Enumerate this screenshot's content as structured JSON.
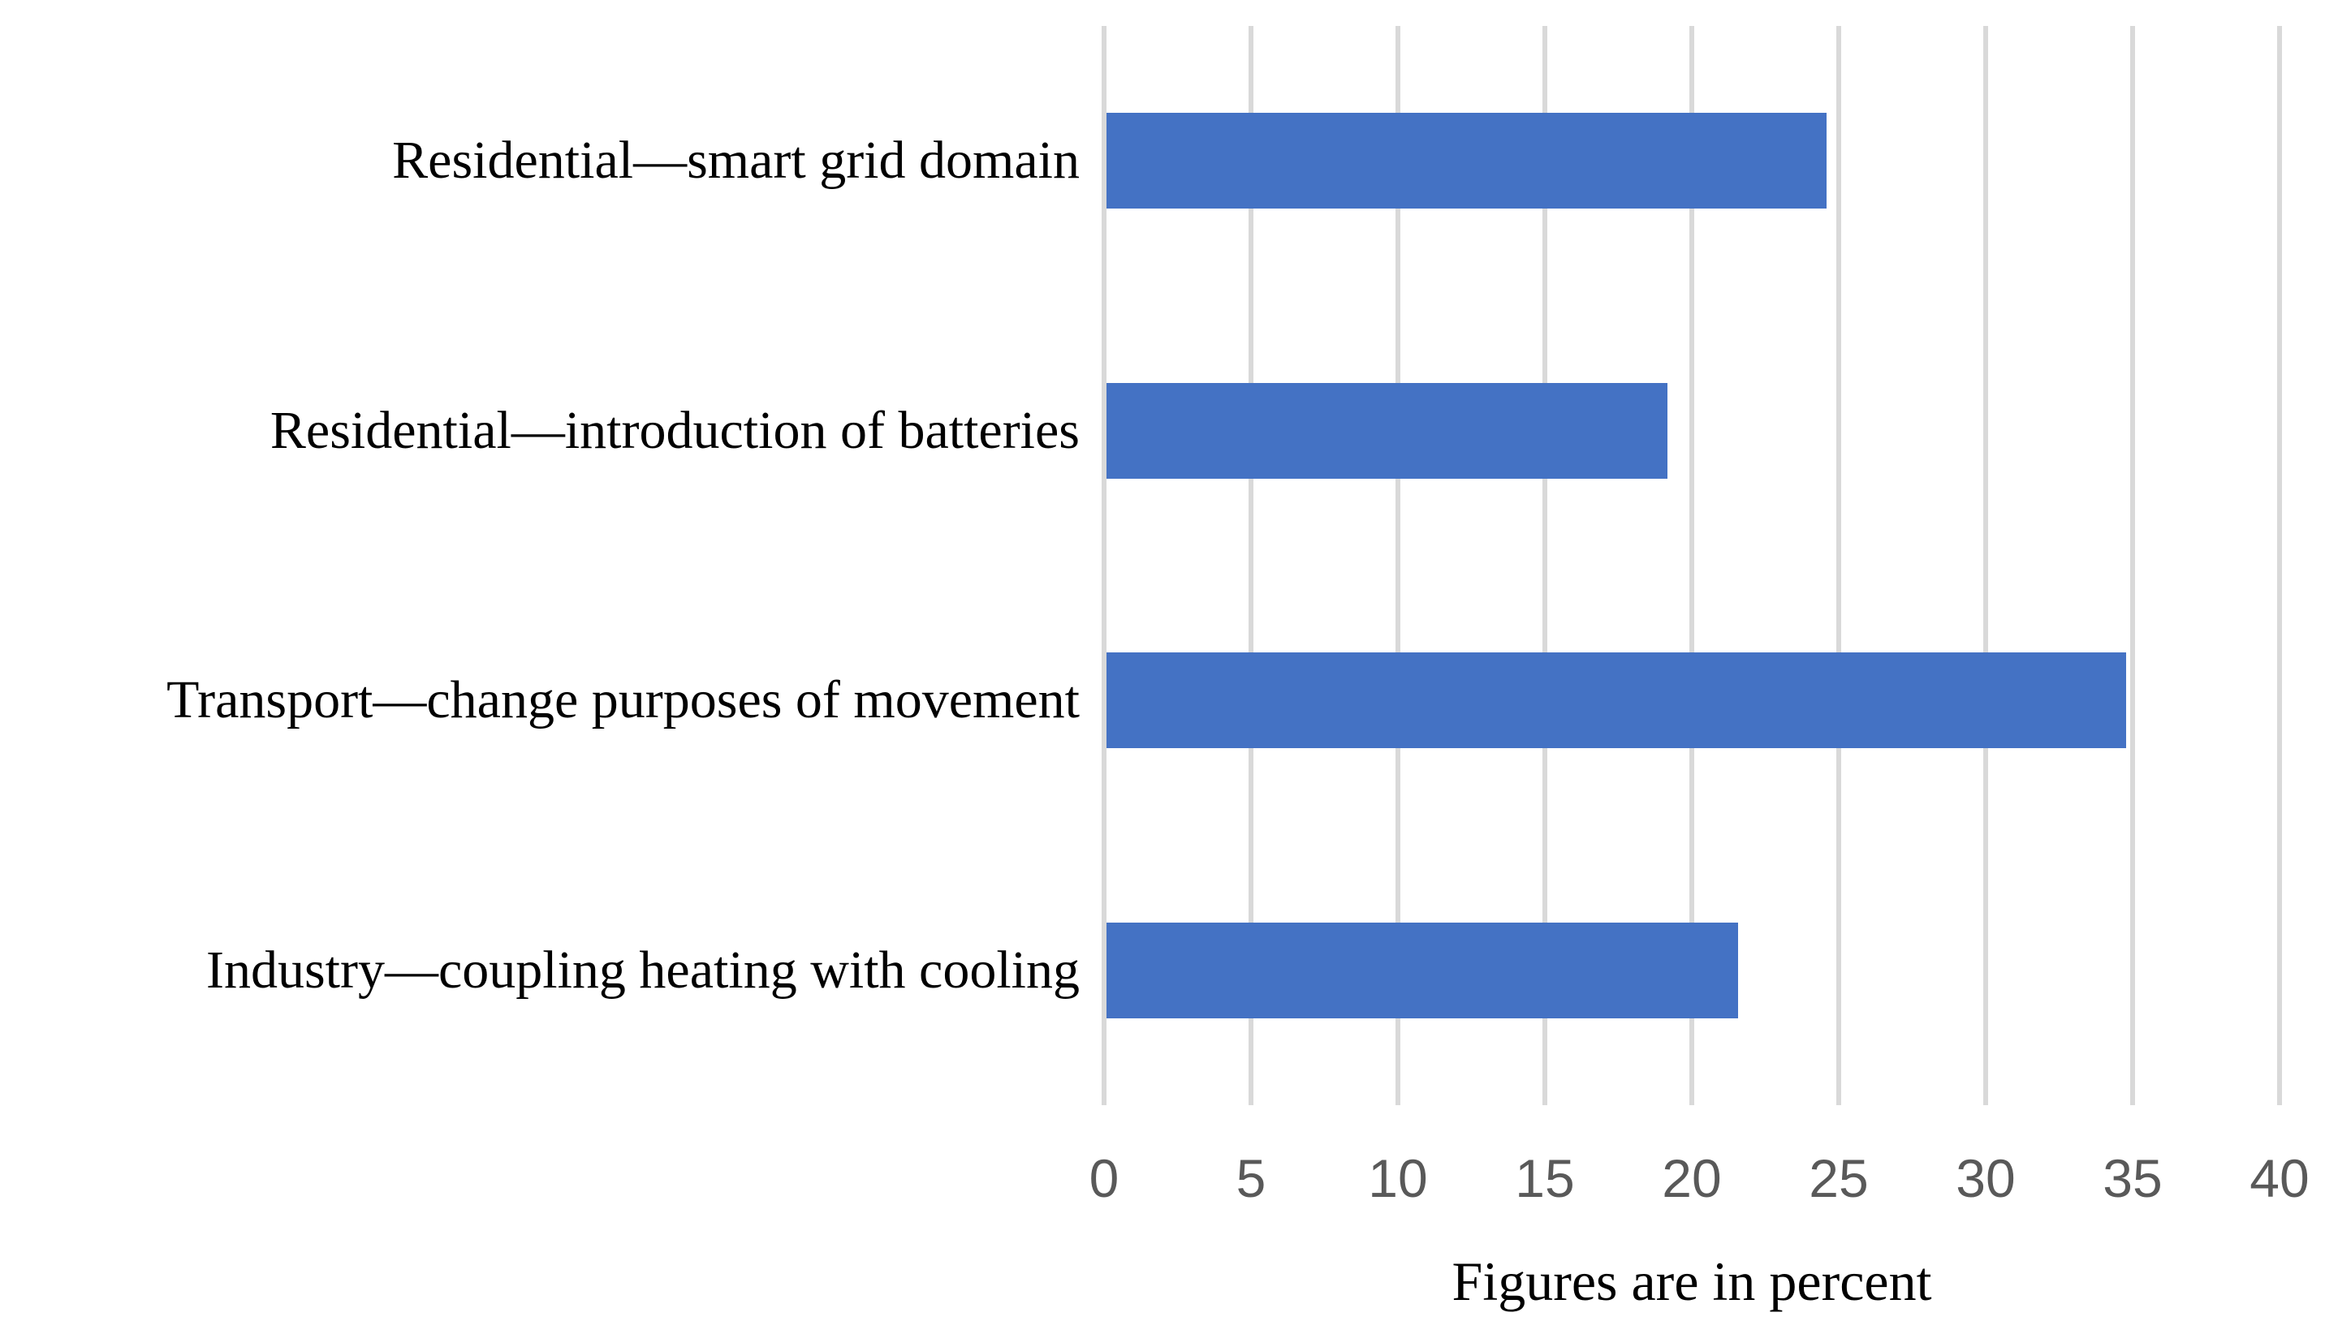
{
  "chart_data": {
    "type": "bar",
    "orientation": "horizontal",
    "title": "",
    "xlabel": "Figures are in percent",
    "ylabel": "",
    "categories": [
      "Residential—smart grid domain",
      "Residential—introduction of batteries",
      "Transport—change purposes of movement",
      "Industry—coupling heating with cooling"
    ],
    "values": [
      24.5,
      19.1,
      34.7,
      21.5
    ],
    "xlim": [
      0,
      40
    ],
    "xticks": [
      0,
      5,
      10,
      15,
      20,
      25,
      30,
      35,
      40
    ],
    "grid": "vertical-gridlines-on",
    "legend": "none",
    "colors": {
      "bar": "#4472C4",
      "gridline": "#D9D9D9",
      "tick_text": "#595959",
      "label_text": "#000000",
      "background": "#FFFFFF"
    }
  }
}
